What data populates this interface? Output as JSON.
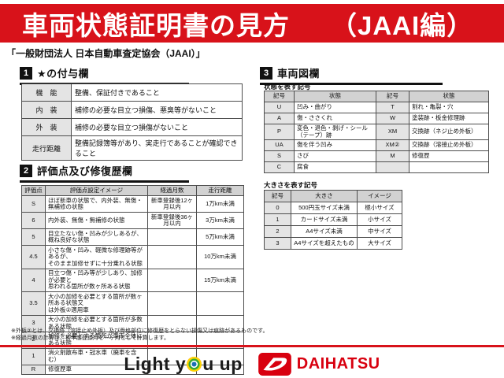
{
  "colors": {
    "banner_red": "#d8121a",
    "daihatsu_red": "#d8000f"
  },
  "banner": {
    "title": "車両状態証明書の見方",
    "edition": "（JAAI編）"
  },
  "subtitle": "「一般財団法人 日本自動車査定協会（JAAI）」",
  "section1": {
    "num": "1",
    "title": "★の付与欄",
    "rows": [
      [
        "機　能",
        "整備、保証付きであること"
      ],
      [
        "内　装",
        "補修の必要な目立つ損傷、悪臭等がないこと"
      ],
      [
        "外　装",
        "補修の必要な目立つ損傷がないこと"
      ],
      [
        "走行距離",
        "整備記録簿等があり、実走行であることが確認できること"
      ]
    ]
  },
  "section2": {
    "num": "2",
    "title": "評価点及び修復歴欄",
    "headers": [
      "評価点",
      "評価点設定イメージ",
      "経過月数",
      "走行距離"
    ],
    "rows": [
      [
        "S",
        "ほぼ新車の状態で、内外装、無傷・無補修の状態",
        "新車登録後12ヶ月以内",
        "1万km未満"
      ],
      [
        "6",
        "内外装、無傷・無補修の状態",
        "新車登録後36ヶ月以内",
        "3万km未満"
      ],
      [
        "5",
        "目立たない傷・凹みが少しあるが、概ね良好な状態",
        "",
        "5万km未満"
      ],
      [
        "4.5",
        "小さな傷・凹み、軽微な修理跡等があるが、\nそのまま加修せずに十分乗れる状態",
        "",
        "10万km未満"
      ],
      [
        "4",
        "目立つ傷・凹み等が少しあり、加修が必要と\n思われる箇所が数ヶ所ある状態",
        "",
        "15万km未満"
      ],
      [
        "3.5",
        "大小の加修を必要とする箇所が数ヶ所ある状態又\nは外板②適用車",
        "",
        ""
      ],
      [
        "3",
        "大小の加修を必要とする箇所が多数ある状態",
        "",
        ""
      ],
      [
        "2",
        "加修を必要とする箇所が車両全体にある状態",
        "",
        ""
      ],
      [
        "1",
        "消火剤散布車・冠水車（廃車を含む）",
        "",
        ""
      ],
      [
        "R",
        "修復歴車",
        "",
        ""
      ]
    ]
  },
  "section3": {
    "num": "3",
    "title": "車両図欄",
    "state_table": {
      "label": "状態を表す記号",
      "headers": [
        "記号",
        "状態",
        "記号",
        "状態"
      ],
      "rows": [
        [
          "U",
          "凹み・曲がり",
          "T",
          "割れ・亀裂・穴"
        ],
        [
          "A",
          "傷・ささくれ",
          "W",
          "塗装跡・板金修理跡"
        ],
        [
          "P",
          "変色・退色・剥げ・シール（テープ）跡",
          "XM",
          "交換跡（ネジ止め外板）"
        ],
        [
          "UA",
          "傷を伴う凹み",
          "XM②",
          "交換跡（溶接止め外板）"
        ],
        [
          "S",
          "さび",
          "M",
          "修復歴"
        ],
        [
          "C",
          "腐食",
          "",
          ""
        ]
      ]
    },
    "size_table": {
      "label": "大きさを表す記号",
      "headers": [
        "記号",
        "大きさ",
        "イメージ"
      ],
      "rows": [
        [
          "0",
          "500円玉サイズ未満",
          "極小サイズ"
        ],
        [
          "1",
          "カードサイズ未満",
          "小サイズ"
        ],
        [
          "2",
          "A4サイズ未満",
          "中サイズ"
        ],
        [
          "3",
          "A4サイズを超えたもの",
          "大サイズ"
        ]
      ]
    }
  },
  "notes": [
    "※外板②とは、交換跡（溶接止め外板）及び骨格部位に修復歴をとらない損傷又は痕跡があるものです。",
    "※経過月数の計算は、初年度登録月を一ヶ月として計算します。"
  ],
  "footer": {
    "light_you_up_left": "Light y",
    "light_you_up_right": "u up",
    "daihatsu": "DAIHATSU"
  }
}
